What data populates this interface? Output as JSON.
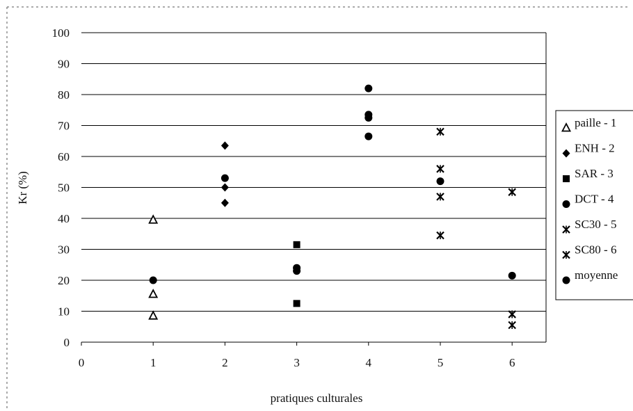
{
  "chart_data": {
    "type": "scatter",
    "title": "",
    "xlabel": "pratiques culturales",
    "ylabel": "Kr (%)",
    "xlim": [
      0,
      6
    ],
    "ylim": [
      0,
      100
    ],
    "x_ticks": [
      0,
      1,
      2,
      3,
      4,
      5,
      6
    ],
    "y_ticks": [
      0,
      10,
      20,
      30,
      40,
      50,
      60,
      70,
      80,
      90,
      100
    ],
    "grid": "horizontal",
    "legend_position": "right",
    "series": [
      {
        "name": "paille - 1",
        "marker": "triangle-open",
        "color": "#000000",
        "points": [
          [
            1,
            39.5
          ],
          [
            1,
            15.5
          ],
          [
            1,
            8.5
          ]
        ]
      },
      {
        "name": "ENH - 2",
        "marker": "diamond",
        "color": "#000000",
        "points": [
          [
            2,
            63.5
          ],
          [
            2,
            50
          ],
          [
            2,
            45
          ]
        ]
      },
      {
        "name": "SAR - 3",
        "marker": "square",
        "color": "#000000",
        "points": [
          [
            3,
            31.5
          ],
          [
            3,
            12.5
          ]
        ]
      },
      {
        "name": "DCT - 4",
        "marker": "circle",
        "color": "#000000",
        "points": [
          [
            4,
            82
          ],
          [
            4,
            73.5
          ],
          [
            4,
            66.5
          ]
        ]
      },
      {
        "name": "SC30 - 5",
        "marker": "star-cross",
        "color": "#000000",
        "points": [
          [
            5,
            68
          ],
          [
            5,
            56
          ],
          [
            5,
            47
          ],
          [
            5,
            34.5
          ]
        ]
      },
      {
        "name": "SC80 - 6",
        "marker": "star-cross",
        "color": "#000000",
        "points": [
          [
            6,
            48.5
          ],
          [
            6,
            9
          ],
          [
            6,
            5.5
          ]
        ]
      },
      {
        "name": "moyenne",
        "marker": "circle",
        "color": "#000000",
        "points": [
          [
            1,
            20
          ],
          [
            2,
            53
          ],
          [
            3,
            24
          ],
          [
            3,
            23
          ],
          [
            4,
            72.5
          ],
          [
            5,
            52
          ],
          [
            6,
            21.5
          ]
        ]
      }
    ]
  }
}
